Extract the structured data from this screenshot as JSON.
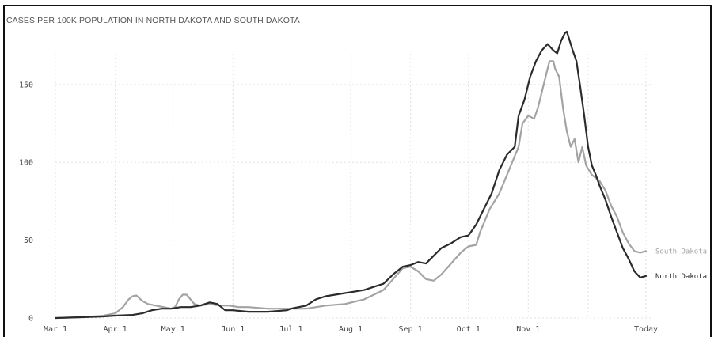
{
  "chart_data": {
    "type": "line",
    "title": "CASES PER 100K POPULATION IN NORTH DAKOTA AND SOUTH DAKOTA",
    "xlabel": "",
    "ylabel": "",
    "x_axis": {
      "ticks": [
        "Mar 1",
        "Apr 1",
        "May 1",
        "Jun 1",
        "Jul 1",
        "Aug 1",
        "Sep 1",
        "Oct 1",
        "Nov 1",
        "Today"
      ],
      "tick_days": [
        0,
        31,
        61,
        92,
        122,
        153,
        184,
        214,
        245,
        306
      ],
      "xlim_days": [
        0,
        306
      ]
    },
    "y_axis": {
      "ticks": [
        0,
        50,
        100,
        150
      ],
      "ylim": [
        0,
        185
      ]
    },
    "grid": true,
    "legend": "direct-labels-right",
    "series": [
      {
        "name": "South Dakota",
        "color": "#a3a3a3",
        "points": [
          [
            0,
            0
          ],
          [
            15,
            0.5
          ],
          [
            25,
            1.5
          ],
          [
            31,
            3
          ],
          [
            35,
            7
          ],
          [
            38,
            12
          ],
          [
            40,
            14
          ],
          [
            42,
            14.5
          ],
          [
            45,
            11
          ],
          [
            48,
            9
          ],
          [
            52,
            8
          ],
          [
            56,
            7
          ],
          [
            60,
            6
          ],
          [
            62,
            7
          ],
          [
            64,
            12
          ],
          [
            66,
            15
          ],
          [
            68,
            15
          ],
          [
            70,
            12
          ],
          [
            72,
            9
          ],
          [
            75,
            8
          ],
          [
            80,
            9
          ],
          [
            85,
            8
          ],
          [
            90,
            8
          ],
          [
            95,
            7
          ],
          [
            100,
            7
          ],
          [
            110,
            6
          ],
          [
            122,
            6
          ],
          [
            130,
            6
          ],
          [
            140,
            8
          ],
          [
            150,
            9
          ],
          [
            160,
            12
          ],
          [
            165,
            15
          ],
          [
            170,
            18
          ],
          [
            175,
            25
          ],
          [
            180,
            32
          ],
          [
            184,
            33
          ],
          [
            188,
            30
          ],
          [
            192,
            25
          ],
          [
            196,
            24
          ],
          [
            200,
            28
          ],
          [
            205,
            35
          ],
          [
            210,
            42
          ],
          [
            214,
            46
          ],
          [
            218,
            47
          ],
          [
            220,
            55
          ],
          [
            225,
            70
          ],
          [
            230,
            80
          ],
          [
            235,
            95
          ],
          [
            240,
            110
          ],
          [
            242,
            125
          ],
          [
            245,
            130
          ],
          [
            248,
            128
          ],
          [
            250,
            135
          ],
          [
            252,
            145
          ],
          [
            254,
            155
          ],
          [
            256,
            165
          ],
          [
            258,
            165
          ],
          [
            259,
            160
          ],
          [
            261,
            155
          ],
          [
            263,
            135
          ],
          [
            265,
            120
          ],
          [
            267,
            110
          ],
          [
            269,
            115
          ],
          [
            271,
            100
          ],
          [
            273,
            110
          ],
          [
            275,
            98
          ],
          [
            278,
            92
          ],
          [
            282,
            88
          ],
          [
            285,
            82
          ],
          [
            288,
            72
          ],
          [
            291,
            65
          ],
          [
            294,
            55
          ],
          [
            297,
            48
          ],
          [
            300,
            43
          ],
          [
            303,
            42
          ],
          [
            306,
            43
          ]
        ]
      },
      {
        "name": "North Dakota",
        "color": "#2b2b2b",
        "points": [
          [
            0,
            0
          ],
          [
            25,
            1
          ],
          [
            31,
            1.5
          ],
          [
            40,
            2
          ],
          [
            45,
            3
          ],
          [
            50,
            5
          ],
          [
            55,
            6
          ],
          [
            60,
            6
          ],
          [
            65,
            7
          ],
          [
            70,
            7
          ],
          [
            75,
            8
          ],
          [
            80,
            10
          ],
          [
            84,
            9
          ],
          [
            88,
            5
          ],
          [
            92,
            5
          ],
          [
            100,
            4
          ],
          [
            110,
            4
          ],
          [
            120,
            5
          ],
          [
            122,
            6
          ],
          [
            130,
            8
          ],
          [
            135,
            12
          ],
          [
            140,
            14
          ],
          [
            145,
            15
          ],
          [
            150,
            16
          ],
          [
            155,
            17
          ],
          [
            160,
            18
          ],
          [
            165,
            20
          ],
          [
            170,
            22
          ],
          [
            175,
            28
          ],
          [
            180,
            33
          ],
          [
            184,
            34
          ],
          [
            188,
            36
          ],
          [
            192,
            35
          ],
          [
            196,
            40
          ],
          [
            200,
            45
          ],
          [
            205,
            48
          ],
          [
            210,
            52
          ],
          [
            214,
            53
          ],
          [
            218,
            60
          ],
          [
            222,
            70
          ],
          [
            226,
            80
          ],
          [
            230,
            95
          ],
          [
            234,
            105
          ],
          [
            238,
            110
          ],
          [
            240,
            130
          ],
          [
            243,
            140
          ],
          [
            246,
            155
          ],
          [
            249,
            165
          ],
          [
            252,
            172
          ],
          [
            255,
            176
          ],
          [
            258,
            172
          ],
          [
            260,
            170
          ],
          [
            262,
            178
          ],
          [
            264,
            183
          ],
          [
            265,
            184
          ],
          [
            266,
            180
          ],
          [
            268,
            172
          ],
          [
            270,
            165
          ],
          [
            272,
            148
          ],
          [
            274,
            130
          ],
          [
            276,
            110
          ],
          [
            278,
            98
          ],
          [
            280,
            92
          ],
          [
            282,
            85
          ],
          [
            285,
            76
          ],
          [
            288,
            65
          ],
          [
            291,
            55
          ],
          [
            294,
            45
          ],
          [
            297,
            38
          ],
          [
            300,
            30
          ],
          [
            303,
            26
          ],
          [
            306,
            27
          ]
        ]
      }
    ]
  }
}
